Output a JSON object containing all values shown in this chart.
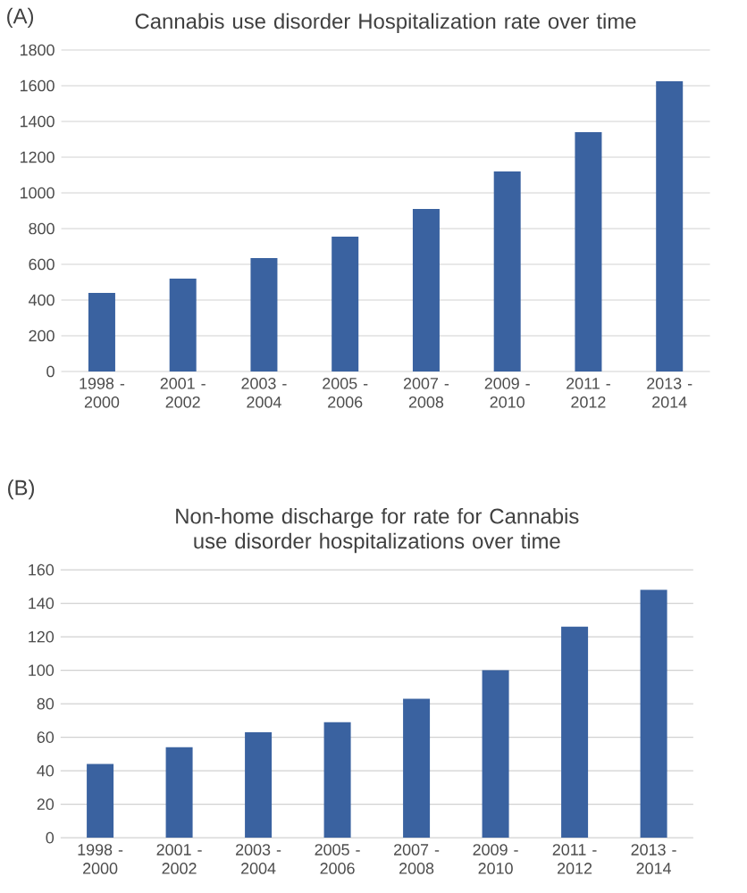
{
  "chart_data": [
    {
      "type": "bar",
      "title": "Cannabis use disorder Hospitalization rate over time",
      "annotations": [
        "(A)"
      ],
      "categories": [
        "1998 - 2000",
        "2001 - 2002",
        "2003 - 2004",
        "2005 - 2006",
        "2007 - 2008",
        "2009 - 2010",
        "2011 - 2012",
        "2013 - 2014"
      ],
      "values": [
        440,
        520,
        635,
        755,
        910,
        1120,
        1340,
        1625
      ],
      "color": "#3a62a0",
      "ylim": [
        0,
        1800
      ],
      "yticks": [
        0,
        200,
        400,
        600,
        800,
        1000,
        1200,
        1400,
        1600,
        1800
      ],
      "grid": "y"
    },
    {
      "type": "bar",
      "title": "Non-home discharge for rate for Cannabis use disorder hospitalizations over time",
      "annotations": [
        "(B)"
      ],
      "categories": [
        "1998 - 2000",
        "2001 - 2002",
        "2003 - 2004",
        "2005 - 2006",
        "2007 - 2008",
        "2009 - 2010",
        "2011 - 2012",
        "2013 - 2014"
      ],
      "values": [
        44,
        54,
        63,
        69,
        83,
        100,
        126,
        148
      ],
      "color": "#3a62a0",
      "ylim": [
        0,
        160
      ],
      "yticks": [
        0,
        20,
        40,
        60,
        80,
        100,
        120,
        140,
        160
      ],
      "grid": "y"
    }
  ]
}
